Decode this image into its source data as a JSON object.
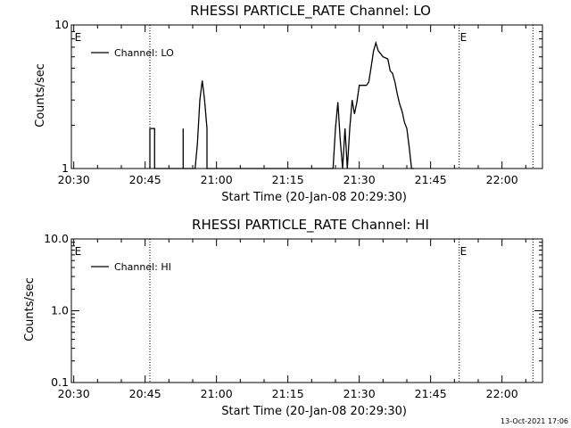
{
  "stamp": "13-Oct-2021 17:06",
  "chart_data": [
    {
      "type": "line",
      "title": "RHESSI PARTICLE_RATE Channel: LO",
      "xlabel": "Start Time (20-Jan-08 20:29:30)",
      "ylabel": "Counts/sec",
      "yscale": "log",
      "ylim": [
        1,
        10
      ],
      "yticks": [
        {
          "value": 1,
          "label": "1"
        },
        {
          "value": 10,
          "label": "10"
        }
      ],
      "xlim": [
        "20:29:30",
        "22:08:30"
      ],
      "xticks": [
        "20:30",
        "20:45",
        "21:00",
        "21:15",
        "21:30",
        "21:45",
        "22:00"
      ],
      "legend": "top-left",
      "grid": false,
      "vlines": [
        "20:46:00",
        "21:51:00",
        "22:06:30"
      ],
      "markers": [
        {
          "label": "E",
          "time": "20:30:00"
        },
        {
          "label": "E",
          "time": "21:51:00"
        }
      ],
      "series": [
        {
          "name": "Channel: LO",
          "color": "#000000",
          "times": [
            "20:46:00",
            "20:46:00",
            "20:46:30",
            "20:46:30",
            "20:47:00",
            "20:47:00",
            "20:47:30",
            "20:47:30",
            "20:53:00",
            "20:53:00",
            "20:53:00",
            "20:53:00",
            "20:55:30",
            "20:56:00",
            "20:56:30",
            "20:57:00",
            "20:57:30",
            "20:58:00",
            "20:58:00",
            "20:58:30",
            "21:24:30",
            "21:25:00",
            "21:25:00",
            "21:25:30",
            "21:25:30",
            "21:26:00",
            "21:26:00",
            "21:26:30",
            "21:26:30",
            "21:27:00",
            "21:27:00",
            "21:27:30",
            "21:27:30",
            "21:28:00",
            "21:28:00",
            "21:28:30",
            "21:29:00",
            "21:29:30",
            "21:30:00",
            "21:30:30",
            "21:31:00",
            "21:31:30",
            "21:32:00",
            "21:32:30",
            "21:33:00",
            "21:33:30",
            "21:34:00",
            "21:34:30",
            "21:35:00",
            "21:35:30",
            "21:36:00",
            "21:36:30",
            "21:37:00",
            "21:37:30",
            "21:38:00",
            "21:38:30",
            "21:39:00",
            "21:39:30",
            "21:40:00",
            "21:40:30",
            "21:41:00",
            "21:41:30",
            "21:41:30"
          ],
          "values": [
            1,
            1.9,
            1.9,
            1.9,
            1.9,
            1,
            1,
            1,
            1,
            1.9,
            1.9,
            1,
            1,
            1.5,
            3.0,
            4.1,
            3.0,
            1.9,
            1,
            1,
            1,
            1.9,
            1.9,
            2.9,
            2.9,
            1.6,
            1.6,
            1,
            1,
            1.9,
            1.9,
            1,
            1,
            1.9,
            1.9,
            3.0,
            2.4,
            2.9,
            3.8,
            3.8,
            3.8,
            3.8,
            4.0,
            5.1,
            6.6,
            7.5,
            6.6,
            6.3,
            6.0,
            5.9,
            5.8,
            4.8,
            4.6,
            4.0,
            3.3,
            2.8,
            2.5,
            2.1,
            1.9,
            1.4,
            1.0,
            1.0,
            1.0
          ]
        }
      ]
    },
    {
      "type": "line",
      "title": "RHESSI PARTICLE_RATE Channel: HI",
      "xlabel": "Start Time (20-Jan-08 20:29:30)",
      "ylabel": "Counts/sec",
      "yscale": "log",
      "ylim": [
        0.1,
        10
      ],
      "yticks": [
        {
          "value": 0.1,
          "label": "0.1"
        },
        {
          "value": 1,
          "label": "1.0"
        },
        {
          "value": 10,
          "label": "10.0"
        }
      ],
      "xlim": [
        "20:29:30",
        "22:08:30"
      ],
      "xticks": [
        "20:30",
        "20:45",
        "21:00",
        "21:15",
        "21:30",
        "21:45",
        "22:00"
      ],
      "legend": "top-left",
      "grid": false,
      "vlines": [
        "20:46:00",
        "21:51:00",
        "22:06:30"
      ],
      "markers": [
        {
          "label": "E",
          "time": "20:30:00"
        },
        {
          "label": "E",
          "time": "21:51:00"
        }
      ],
      "series": [
        {
          "name": "Channel: HI",
          "color": "#000000",
          "times": [],
          "values": []
        }
      ]
    }
  ]
}
